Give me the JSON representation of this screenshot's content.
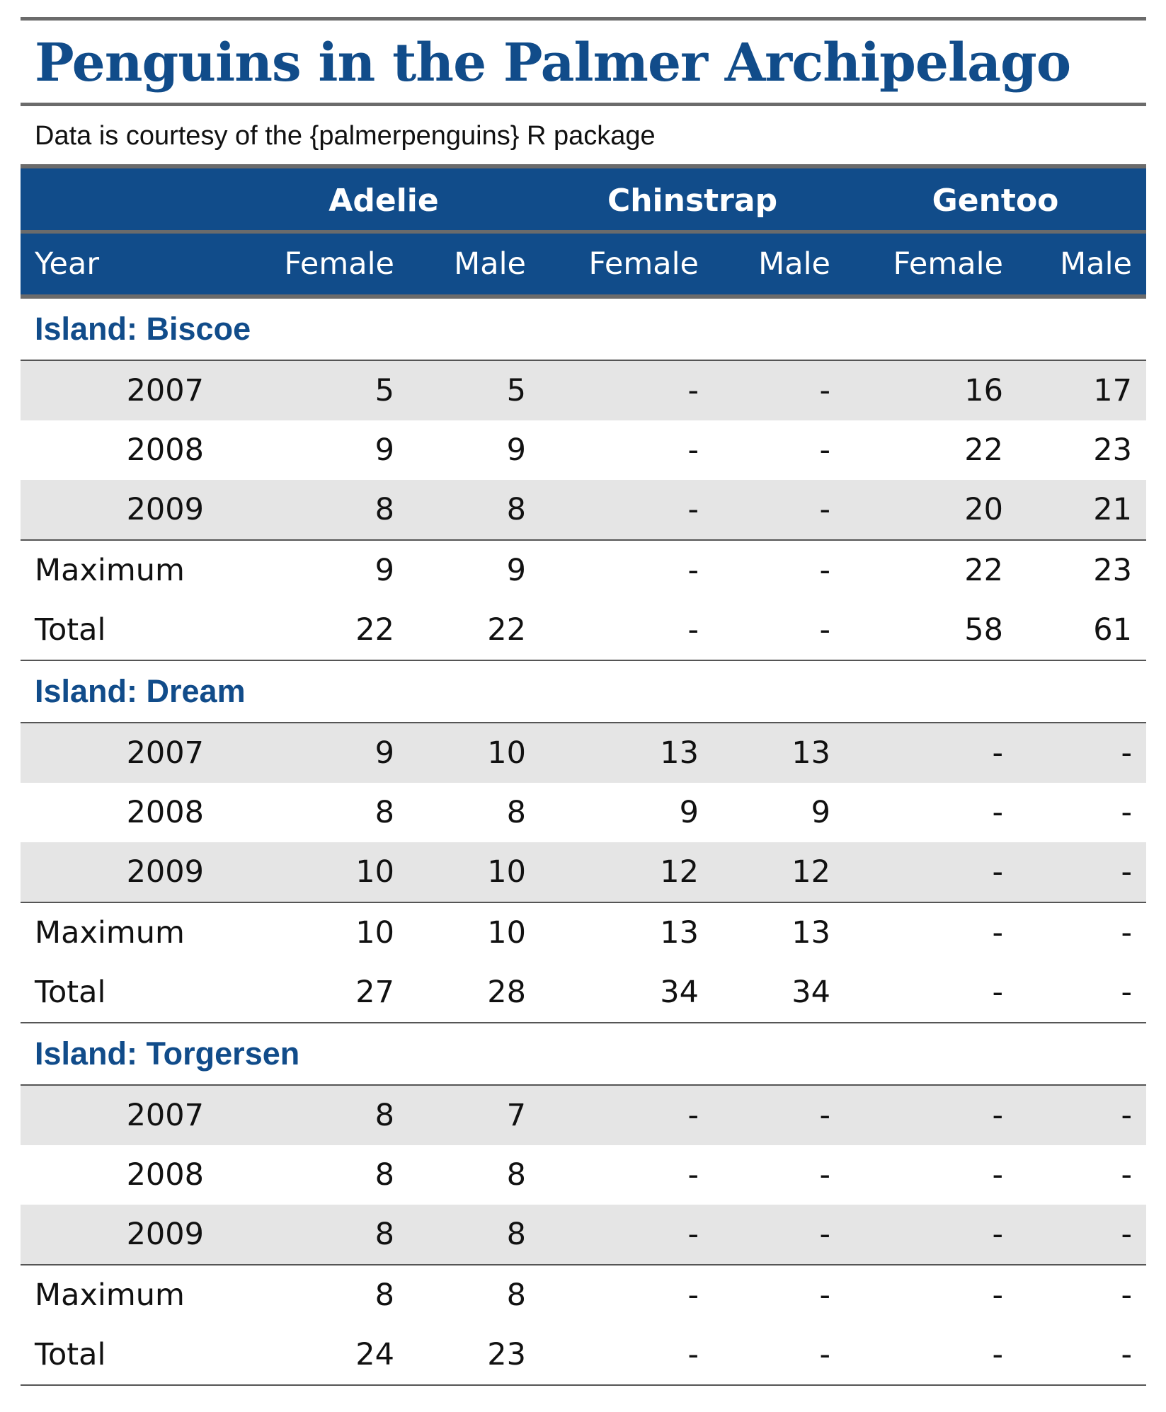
{
  "title": "Penguins in the Palmer Archipelago",
  "subtitle": "Data is courtesy of the {palmerpenguins} R package",
  "header": {
    "species": [
      "Adelie",
      "Chinstrap",
      "Gentoo"
    ],
    "year_label": "Year",
    "sex_labels": [
      "Female",
      "Male",
      "Female",
      "Male",
      "Female",
      "Male"
    ]
  },
  "groups": [
    {
      "label": "Island: Biscoe",
      "rows": [
        {
          "year": "2007",
          "values": [
            "5",
            "5",
            "-",
            "-",
            "16",
            "17"
          ]
        },
        {
          "year": "2008",
          "values": [
            "9",
            "9",
            "-",
            "-",
            "22",
            "23"
          ]
        },
        {
          "year": "2009",
          "values": [
            "8",
            "8",
            "-",
            "-",
            "20",
            "21"
          ]
        }
      ],
      "summaries": [
        {
          "label": "Maximum",
          "values": [
            "9",
            "9",
            "-",
            "-",
            "22",
            "23"
          ]
        },
        {
          "label": "Total",
          "values": [
            "22",
            "22",
            "-",
            "-",
            "58",
            "61"
          ]
        }
      ]
    },
    {
      "label": "Island: Dream",
      "rows": [
        {
          "year": "2007",
          "values": [
            "9",
            "10",
            "13",
            "13",
            "-",
            "-"
          ]
        },
        {
          "year": "2008",
          "values": [
            "8",
            "8",
            "9",
            "9",
            "-",
            "-"
          ]
        },
        {
          "year": "2009",
          "values": [
            "10",
            "10",
            "12",
            "12",
            "-",
            "-"
          ]
        }
      ],
      "summaries": [
        {
          "label": "Maximum",
          "values": [
            "10",
            "10",
            "13",
            "13",
            "-",
            "-"
          ]
        },
        {
          "label": "Total",
          "values": [
            "27",
            "28",
            "34",
            "34",
            "-",
            "-"
          ]
        }
      ]
    },
    {
      "label": "Island: Torgersen",
      "rows": [
        {
          "year": "2007",
          "values": [
            "8",
            "7",
            "-",
            "-",
            "-",
            "-"
          ]
        },
        {
          "year": "2008",
          "values": [
            "8",
            "8",
            "-",
            "-",
            "-",
            "-"
          ]
        },
        {
          "year": "2009",
          "values": [
            "8",
            "8",
            "-",
            "-",
            "-",
            "-"
          ]
        }
      ],
      "summaries": [
        {
          "label": "Maximum",
          "values": [
            "8",
            "8",
            "-",
            "-",
            "-",
            "-"
          ]
        },
        {
          "label": "Total",
          "values": [
            "24",
            "23",
            "-",
            "-",
            "-",
            "-"
          ]
        }
      ]
    }
  ],
  "colors": {
    "accent": "#114c8a",
    "stripe": "#e5e5e5",
    "rule": "#6b6b6b"
  }
}
